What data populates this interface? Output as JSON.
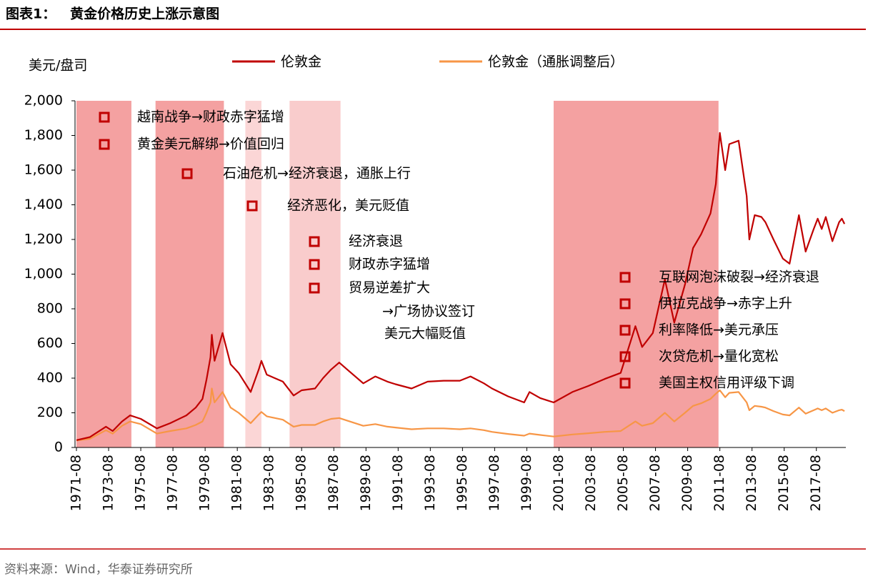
{
  "chart_data": {
    "type": "line",
    "title": "图表1：   黄金价格历史上涨示意图",
    "y_label": "美元/盘司",
    "source": "资料来源：Wind，华泰证券研究所",
    "x": [
      "1971-08",
      "1972-06",
      "1973-06",
      "1973-11",
      "1974-06",
      "1974-12",
      "1975-08",
      "1976-08",
      "1977-06",
      "1978-06",
      "1979-01",
      "1979-06",
      "1979-09",
      "1979-12",
      "1980-01",
      "1980-03",
      "1980-09",
      "1981-03",
      "1981-09",
      "1982-06",
      "1982-12",
      "1983-02",
      "1983-06",
      "1984-06",
      "1985-02",
      "1985-08",
      "1986-06",
      "1986-12",
      "1987-06",
      "1987-12",
      "1988-06",
      "1989-06",
      "1990-03",
      "1990-12",
      "1991-06",
      "1992-06",
      "1993-06",
      "1994-06",
      "1995-06",
      "1996-02",
      "1996-12",
      "1997-06",
      "1998-06",
      "1999-06",
      "1999-10",
      "2000-06",
      "2001-04",
      "2002-06",
      "2003-06",
      "2004-06",
      "2005-06",
      "2006-05",
      "2006-10",
      "2007-06",
      "2008-03",
      "2008-10",
      "2009-06",
      "2009-12",
      "2010-06",
      "2011-01",
      "2011-05",
      "2011-08",
      "2011-12",
      "2012-03",
      "2012-10",
      "2013-04",
      "2013-06",
      "2013-10",
      "2014-03",
      "2014-06",
      "2014-12",
      "2015-07",
      "2015-12",
      "2016-07",
      "2016-12",
      "2017-06",
      "2017-09",
      "2017-12",
      "2018-03",
      "2018-08",
      "2019-01",
      "2019-03",
      "2019-05"
    ],
    "series": [
      {
        "name": "伦敦金",
        "color": "#c00000",
        "values": [
          42,
          60,
          120,
          95,
          150,
          185,
          165,
          110,
          140,
          185,
          230,
          280,
          390,
          520,
          650,
          500,
          660,
          480,
          430,
          320,
          450,
          500,
          420,
          380,
          300,
          330,
          340,
          400,
          450,
          490,
          450,
          370,
          410,
          380,
          365,
          340,
          380,
          385,
          385,
          410,
          370,
          340,
          295,
          260,
          320,
          285,
          260,
          320,
          355,
          395,
          430,
          700,
          580,
          660,
          970,
          720,
          940,
          1150,
          1230,
          1350,
          1520,
          1815,
          1600,
          1750,
          1770,
          1450,
          1200,
          1340,
          1330,
          1300,
          1200,
          1090,
          1060,
          1340,
          1130,
          1260,
          1320,
          1260,
          1330,
          1190,
          1300,
          1320,
          1290
        ]
      },
      {
        "name": "伦敦金（通胀调整后）",
        "color": "#f79646",
        "values": [
          40,
          50,
          100,
          80,
          125,
          150,
          135,
          80,
          95,
          110,
          130,
          150,
          200,
          260,
          340,
          260,
          320,
          230,
          200,
          140,
          190,
          205,
          180,
          160,
          120,
          130,
          130,
          150,
          165,
          170,
          155,
          125,
          135,
          120,
          115,
          105,
          110,
          110,
          105,
          110,
          100,
          90,
          78,
          68,
          80,
          72,
          63,
          75,
          82,
          90,
          95,
          150,
          125,
          140,
          200,
          150,
          200,
          240,
          255,
          280,
          310,
          330,
          290,
          315,
          320,
          260,
          215,
          240,
          235,
          230,
          210,
          190,
          185,
          230,
          195,
          215,
          225,
          215,
          225,
          200,
          215,
          218,
          210
        ]
      }
    ],
    "xlim": [
      "1971-08",
      "2019-06"
    ],
    "xticks": [
      "1971-08",
      "1973-08",
      "1975-08",
      "1977-08",
      "1979-08",
      "1981-08",
      "1983-08",
      "1985-08",
      "1987-08",
      "1989-08",
      "1991-08",
      "1993-08",
      "1995-08",
      "1997-08",
      "1999-08",
      "2001-08",
      "2003-08",
      "2005-08",
      "2007-08",
      "2009-08",
      "2011-08",
      "2013-08",
      "2015-08",
      "2017-08"
    ],
    "ylim": [
      0,
      2000
    ],
    "yticks": [
      0,
      200,
      400,
      600,
      800,
      {
        "value": 1000,
        "label": "1,000"
      },
      {
        "value": 1200,
        "label": "1,200"
      },
      {
        "value": 1400,
        "label": "1,400"
      },
      {
        "value": 1600,
        "label": "1,600"
      },
      {
        "value": 1800,
        "label": "1,800"
      },
      {
        "value": 2000,
        "label": "2,000"
      }
    ],
    "periods": [
      {
        "start": "1971-08",
        "end": "1975-01",
        "color": "#f4a1a1"
      },
      {
        "start": "1976-07",
        "end": "1980-10",
        "color": "#f4a1a1"
      },
      {
        "start": "1982-02",
        "end": "1983-02",
        "color": "#fbd6d6"
      },
      {
        "start": "1984-11",
        "end": "1988-01",
        "color": "#f9cccc"
      },
      {
        "start": "2001-04",
        "end": "2011-07",
        "color": "#f4a1a1"
      }
    ],
    "annotations": [
      "越南战争→财政赤字猛增",
      "黄金美元解绑→价值回归",
      "石油危机→经济衰退，通胀上行",
      "经济恶化，美元贬值",
      "经济衰退",
      "财政赤字猛增",
      "贸易逆差扩大",
      "→广场协议签订",
      "美元大幅贬值",
      "互联网泡沫破裂→经济衰退",
      "伊拉克战争→赤字上升",
      "利率降低→美元承压",
      "次贷危机→量化宽松",
      "美国主权信用评级下调"
    ]
  }
}
